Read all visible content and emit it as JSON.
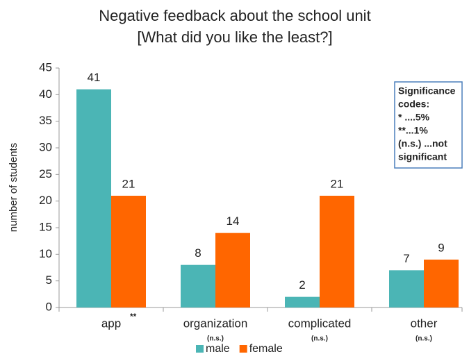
{
  "chart_data": {
    "type": "bar",
    "title": [
      "Negative feedback about the school unit",
      "[What did you like the least?]"
    ],
    "y_axis_label": "number of students",
    "categories": [
      "app",
      "organization",
      "complicated",
      "other"
    ],
    "significance": [
      "**",
      "(n.s.)",
      "(n.s.)",
      "(n.s.)"
    ],
    "series": [
      {
        "name": "male",
        "color": "#4bb5b5",
        "values": [
          41,
          8,
          2,
          7
        ]
      },
      {
        "name": "female",
        "color": "#ff6600",
        "values": [
          21,
          14,
          21,
          9
        ]
      }
    ],
    "ylim": [
      0,
      45
    ],
    "yticks": [
      0,
      5,
      10,
      15,
      20,
      25,
      30,
      35,
      40,
      45
    ],
    "annotation": [
      "Significance",
      "codes:",
      "* ....5%",
      "**...1%",
      "(n.s.) ...not",
      "significant"
    ],
    "legend": "bottom"
  }
}
